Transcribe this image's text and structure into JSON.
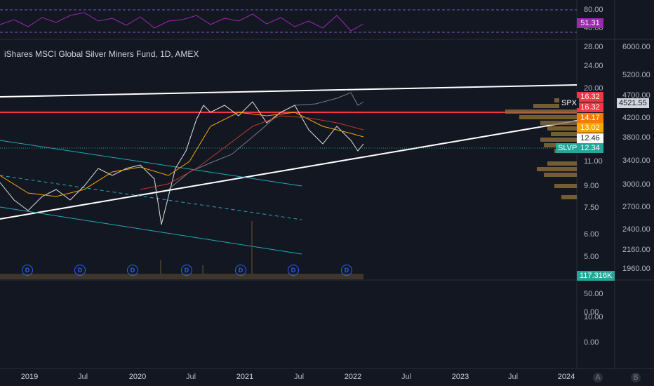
{
  "title": "iShares MSCI Global Silver Miners Fund, 1D, AMEX",
  "rsi_axis": [
    "80.00",
    "40.00"
  ],
  "rsi_value": "51.31",
  "price_axis": [
    "28.00",
    "24.00",
    "20.00",
    "11.00",
    "9.00",
    "7.50",
    "6.00",
    "5.00"
  ],
  "price_tags": [
    "16.32",
    "16.32",
    "14.17",
    "13.02",
    "12.46"
  ],
  "symbol": "SLVP",
  "last_price": "12.34",
  "compare_symbol": "SPX",
  "compare_value": "4521.55",
  "compare_axis": [
    "6000.00",
    "5200.00",
    "4700.00",
    "4200.00",
    "3800.00",
    "3400.00",
    "3000.00",
    "2700.00",
    "2400.00",
    "2160.00",
    "1960.00"
  ],
  "volume_value": "117.316K",
  "lower_axis": [
    "50.00",
    "0.00",
    "10.00",
    "0.00"
  ],
  "x_axis": [
    "2019",
    "Jul",
    "2020",
    "Jul",
    "2021",
    "Jul",
    "2022",
    "Jul",
    "2023",
    "Jul",
    "2024"
  ],
  "dividend_markers": [
    "D",
    "D",
    "D",
    "D",
    "D",
    "D",
    "D"
  ],
  "buttons": [
    "A",
    "B"
  ]
}
